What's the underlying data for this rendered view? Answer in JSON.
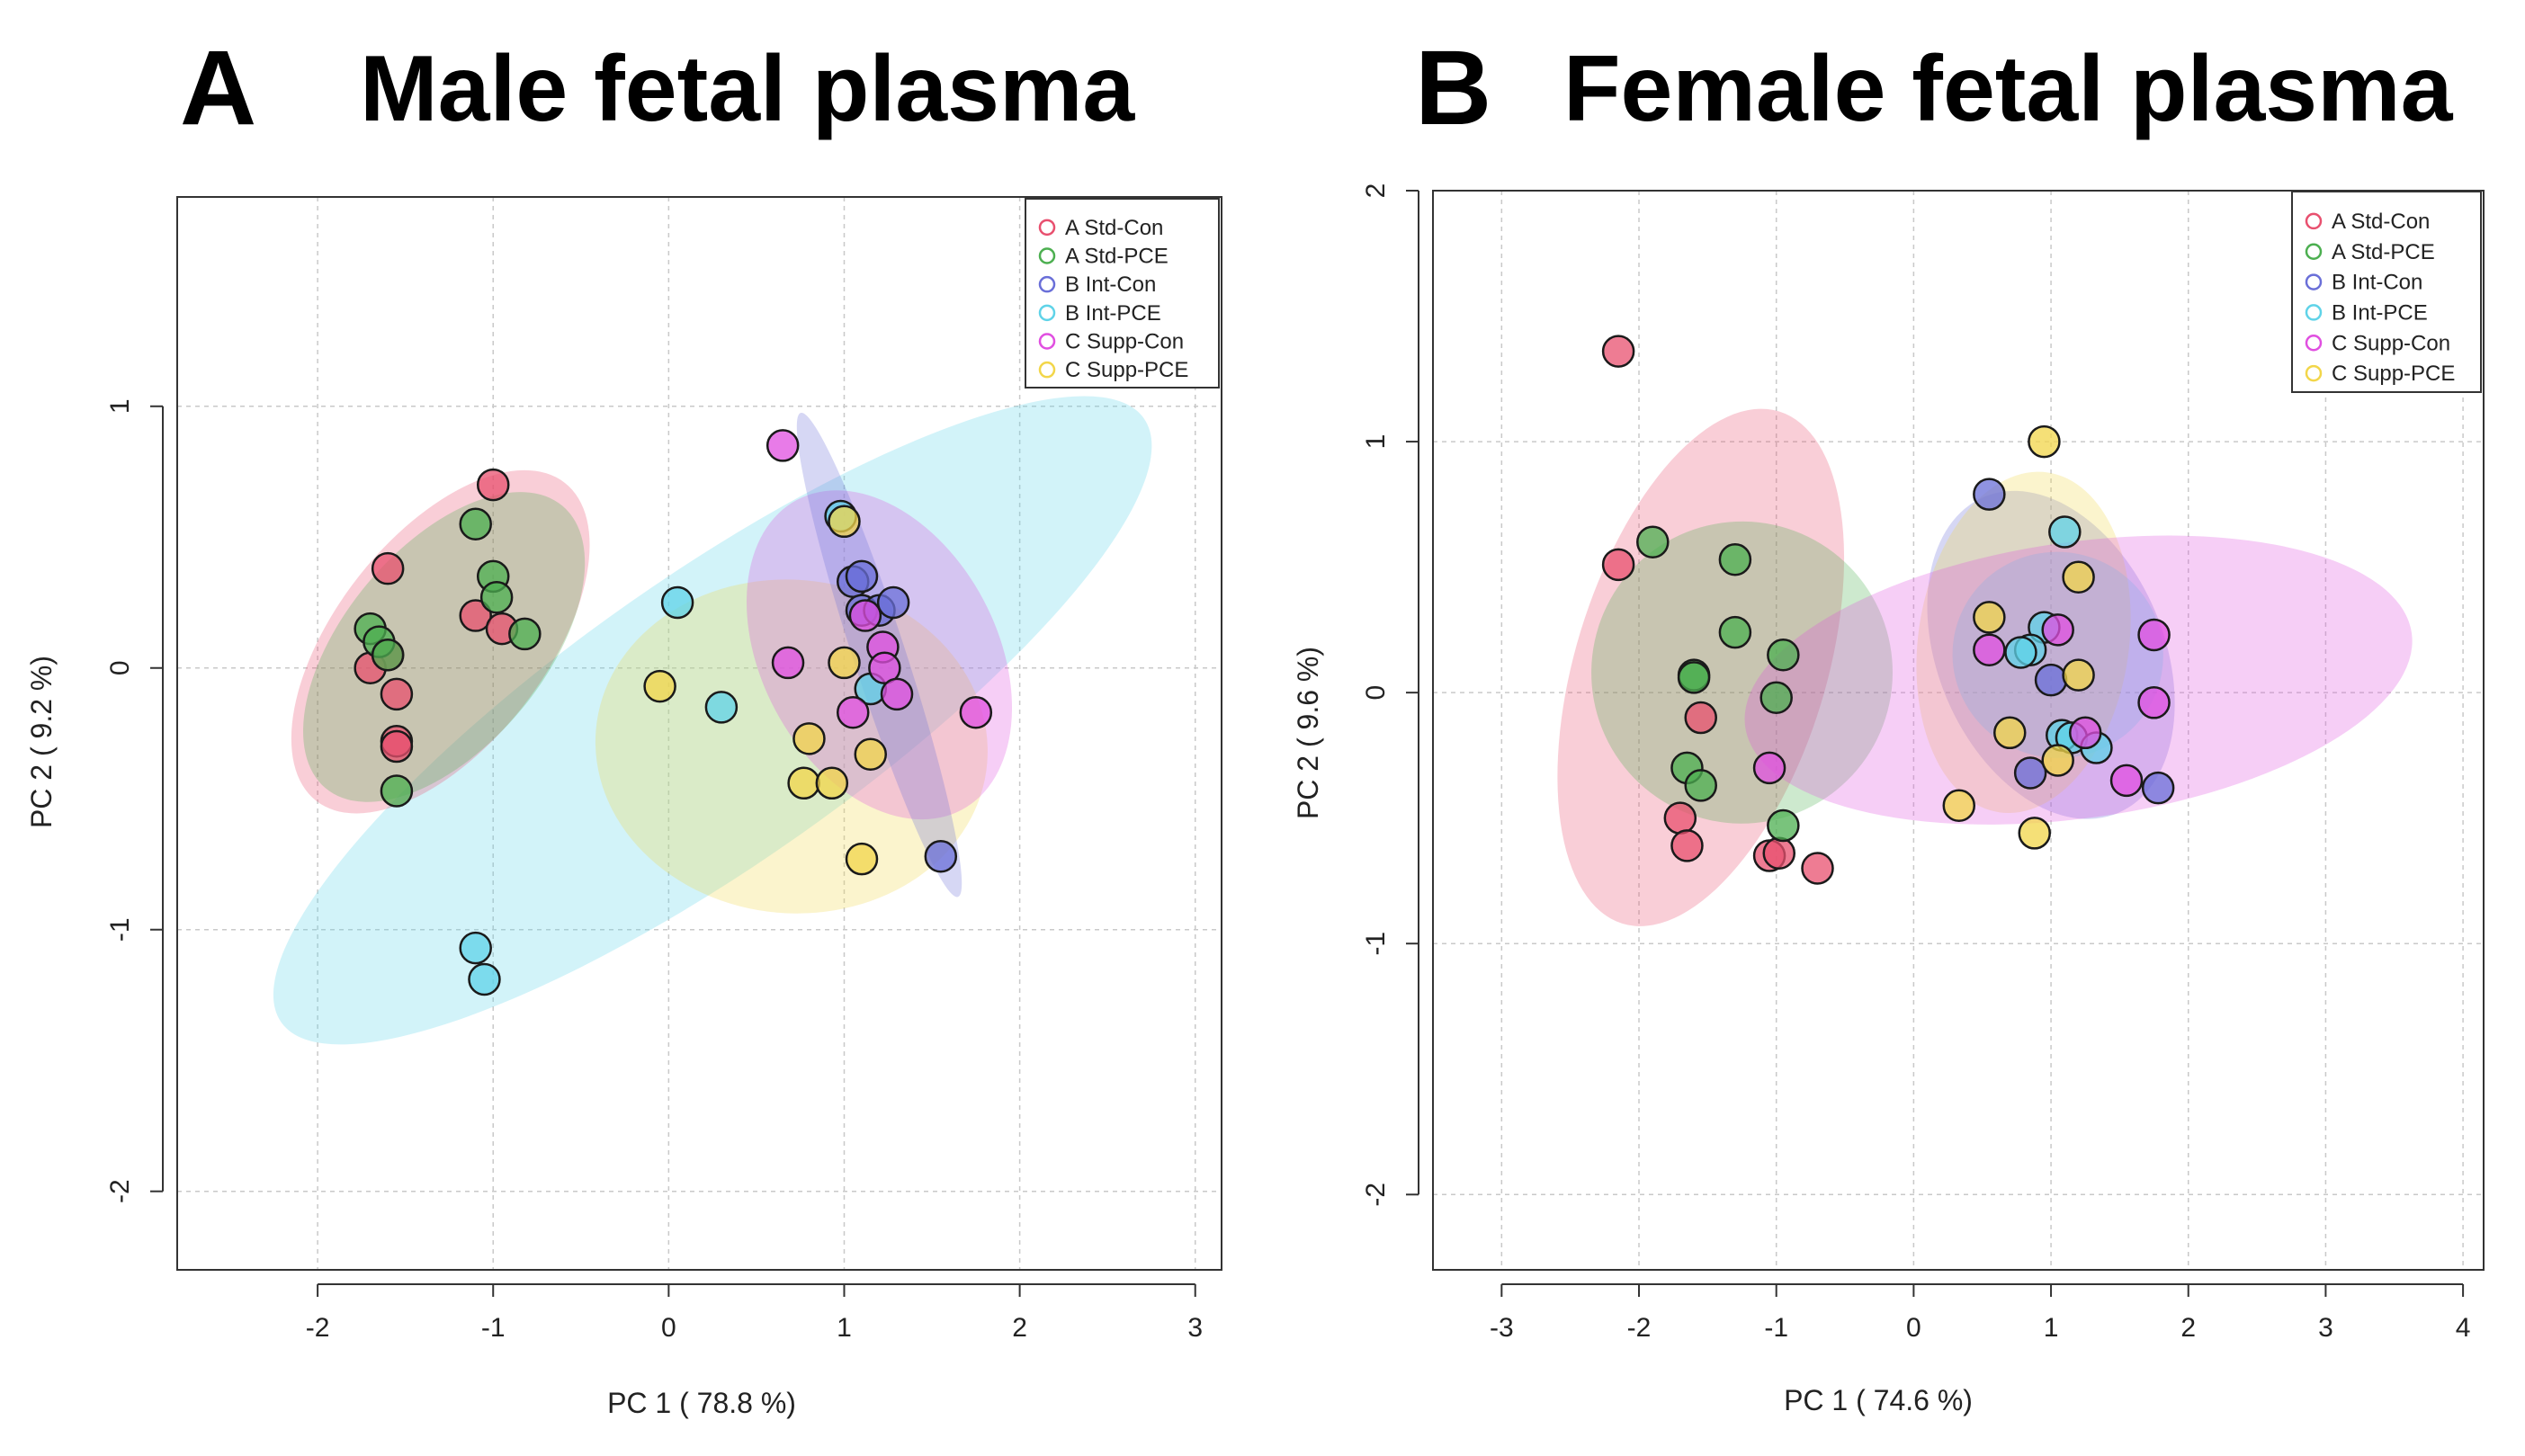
{
  "chart_data": [
    {
      "type": "scatter",
      "panel_label": "A",
      "title": "Male fetal plasma",
      "xlabel": "PC 1 ( 78.8 %)",
      "ylabel": "PC 2 ( 9.2 %)",
      "xlim": [
        -2.8,
        3.15
      ],
      "ylim": [
        -2.3,
        1.8
      ],
      "xticks": [
        -2,
        -1,
        0,
        1,
        2,
        3
      ],
      "yticks": [
        -2,
        -1,
        0,
        1
      ],
      "grid": true,
      "legend_position": "top-right",
      "series": [
        {
          "name": "A Std-Con",
          "color": "#e8506f",
          "x": [
            -1.0,
            -1.6,
            -1.1,
            -0.95,
            -1.7,
            -1.55,
            -1.55,
            -1.55,
            -1.6
          ],
          "y": [
            0.7,
            0.38,
            0.2,
            0.15,
            0.0,
            -0.1,
            -0.28,
            -0.3,
            0.05
          ]
        },
        {
          "name": "A Std-PCE",
          "color": "#4caf50",
          "x": [
            -1.1,
            -1.0,
            -0.98,
            -0.82,
            -1.7,
            -1.65,
            -1.6,
            -1.55
          ],
          "y": [
            0.55,
            0.35,
            0.27,
            0.13,
            0.15,
            0.1,
            0.05,
            -0.47
          ]
        },
        {
          "name": "B Int-Con",
          "color": "#6a6fd8",
          "x": [
            1.05,
            1.1,
            1.1,
            1.2,
            1.28,
            1.55
          ],
          "y": [
            0.33,
            0.35,
            0.22,
            0.22,
            0.25,
            -0.72
          ]
        },
        {
          "name": "B Int-PCE",
          "color": "#5fd3e8",
          "x": [
            0.05,
            0.3,
            -1.1,
            -1.05,
            0.98,
            1.15
          ],
          "y": [
            0.25,
            -0.15,
            -1.07,
            -1.19,
            0.58,
            -0.08
          ]
        },
        {
          "name": "C Supp-Con",
          "color": "#e04fe0",
          "x": [
            0.65,
            0.68,
            1.05,
            1.12,
            1.22,
            1.23,
            1.3,
            1.75
          ],
          "y": [
            0.85,
            0.02,
            -0.17,
            0.2,
            0.08,
            0.0,
            -0.1,
            -0.17
          ]
        },
        {
          "name": "C Supp-PCE",
          "color": "#f2d64a",
          "x": [
            1.0,
            -0.05,
            0.8,
            1.15,
            0.77,
            0.93,
            1.1,
            1.0
          ],
          "y": [
            0.56,
            -0.07,
            -0.27,
            -0.33,
            -0.44,
            -0.44,
            -0.73,
            0.02
          ]
        }
      ],
      "ellipses": [
        {
          "series": "B Int-PCE",
          "cx": 0.25,
          "cy": -0.2,
          "rx": 3.0,
          "ry": 0.55,
          "angle": 35
        },
        {
          "series": "C Supp-PCE",
          "cx": 0.7,
          "cy": -0.3,
          "rx": 0.95,
          "ry": 0.75,
          "angle": 85
        },
        {
          "series": "A Std-Con",
          "cx": -1.3,
          "cy": 0.1,
          "rx": 1.15,
          "ry": 0.4,
          "angle": 52
        },
        {
          "series": "A Std-PCE",
          "cx": -1.28,
          "cy": 0.08,
          "rx": 1.05,
          "ry": 0.38,
          "angle": 50
        },
        {
          "series": "C Supp-Con",
          "cx": 1.2,
          "cy": 0.05,
          "rx": 1.0,
          "ry": 0.45,
          "angle": -62
        },
        {
          "series": "B Int-Con",
          "cx": 1.2,
          "cy": 0.05,
          "rx": 1.45,
          "ry": 0.1,
          "angle": -72
        }
      ]
    },
    {
      "type": "scatter",
      "panel_label": "B",
      "title": "Female fetal plasma",
      "xlabel": "PC 1 ( 74.6 %)",
      "ylabel": "PC 2 ( 9.6 %)",
      "xlim": [
        -3.5,
        4.15
      ],
      "ylim": [
        -2.3,
        2.0
      ],
      "xticks": [
        -3,
        -2,
        -1,
        0,
        1,
        2,
        3,
        4
      ],
      "yticks": [
        -2,
        -1,
        0,
        1,
        2
      ],
      "grid": true,
      "legend_position": "top-right",
      "series": [
        {
          "name": "A Std-Con",
          "color": "#e8506f",
          "x": [
            -2.15,
            -2.15,
            -1.55,
            -1.7,
            -1.65,
            -1.05,
            -0.98,
            -0.7
          ],
          "y": [
            1.36,
            0.51,
            -0.1,
            -0.5,
            -0.61,
            -0.65,
            -0.64,
            -0.7
          ]
        },
        {
          "name": "A Std-PCE",
          "color": "#4caf50",
          "x": [
            -1.9,
            -1.3,
            -1.3,
            -0.95,
            -1.6,
            -1.6,
            -1.65,
            -1.55,
            -1.0,
            -0.95
          ],
          "y": [
            0.6,
            0.53,
            0.24,
            0.15,
            0.07,
            0.06,
            -0.3,
            -0.37,
            -0.02,
            -0.53
          ]
        },
        {
          "name": "B Int-Con",
          "color": "#6a6fd8",
          "x": [
            0.55,
            1.0,
            0.85,
            1.78
          ],
          "y": [
            0.79,
            0.05,
            -0.32,
            -0.38
          ]
        },
        {
          "name": "B Int-PCE",
          "color": "#5fd3e8",
          "x": [
            1.1,
            0.95,
            0.85,
            0.78,
            1.08,
            1.15,
            1.33
          ],
          "y": [
            0.64,
            0.26,
            0.17,
            0.16,
            -0.17,
            -0.18,
            -0.22
          ]
        },
        {
          "name": "C Supp-Con",
          "color": "#e04fe0",
          "x": [
            1.75,
            0.55,
            1.05,
            1.75,
            1.25,
            1.55,
            -1.05
          ],
          "y": [
            0.23,
            0.17,
            0.25,
            -0.04,
            -0.16,
            -0.35,
            -0.3
          ]
        },
        {
          "name": "C Supp-PCE",
          "color": "#f2d64a",
          "x": [
            0.95,
            1.2,
            0.55,
            1.2,
            0.7,
            1.05,
            0.33,
            0.88
          ],
          "y": [
            1.0,
            0.46,
            0.3,
            0.07,
            -0.16,
            -0.27,
            -0.45,
            -0.56
          ]
        }
      ],
      "ellipses": [
        {
          "series": "A Std-Con",
          "cx": -1.55,
          "cy": 0.1,
          "rx": 1.95,
          "ry": 0.5,
          "angle": 73
        },
        {
          "series": "A Std-PCE",
          "cx": -1.25,
          "cy": 0.08,
          "rx": 1.1,
          "ry": 0.6,
          "angle": 78
        },
        {
          "series": "B Int-Con",
          "cx": 1.0,
          "cy": 0.15,
          "rx": 1.25,
          "ry": 0.45,
          "angle": -67
        },
        {
          "series": "C Supp-PCE",
          "cx": 0.8,
          "cy": 0.2,
          "rx": 1.25,
          "ry": 0.42,
          "angle": 82
        },
        {
          "series": "B Int-PCE",
          "cx": 1.05,
          "cy": 0.15,
          "rx": 0.75,
          "ry": 0.42,
          "angle": 80
        },
        {
          "series": "C Supp-Con",
          "cx": 1.2,
          "cy": 0.05,
          "rx": 2.45,
          "ry": 0.55,
          "angle": 8
        }
      ]
    }
  ]
}
